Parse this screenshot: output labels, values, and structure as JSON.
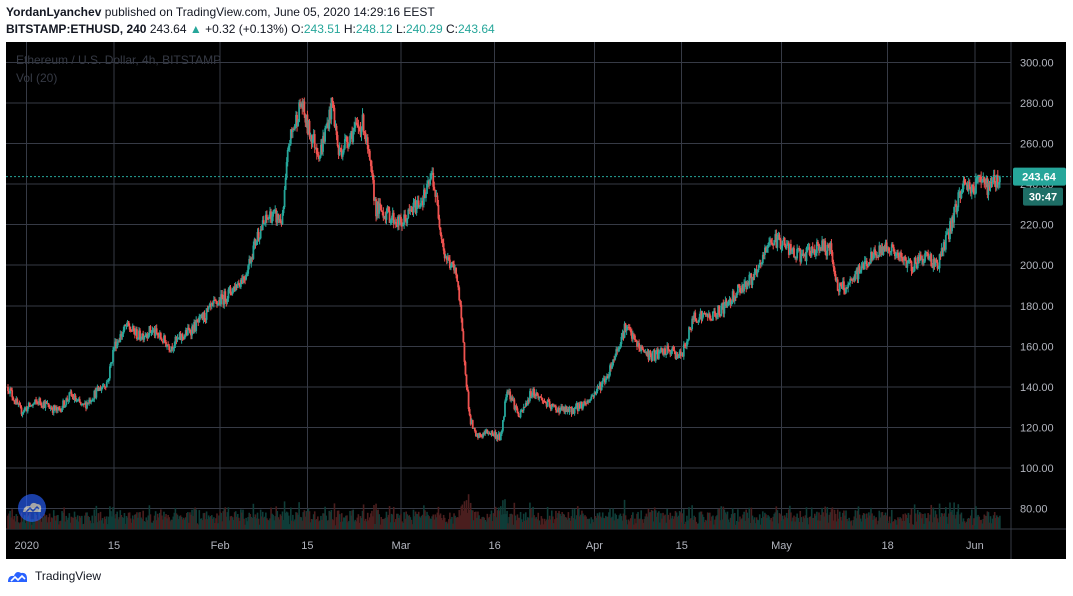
{
  "header": {
    "author": "YordanLyanchev",
    "published_text": "published on TradingView.com, June 05, 2020 14:29:16 EEST"
  },
  "symbol_line": {
    "symbol": "BITSTAMP:ETHUSD, 240",
    "last": "243.64",
    "arrow": "▲",
    "change": "+0.32 (+0.13%)",
    "o_label": "O:",
    "o_val": "243.51",
    "h_label": "H:",
    "h_val": "248.12",
    "l_label": "L:",
    "l_val": "240.29",
    "c_label": "C:",
    "c_val": "243.64"
  },
  "chart_title": "Ethereum / U.S. Dollar, 4h, BITSTAMP",
  "volume_label": "Vol (20)",
  "price_tag": "243.64",
  "countdown": "30:47",
  "footer": {
    "brand": "TradingView"
  },
  "colors": {
    "up": "#26a69a",
    "down": "#ef5350",
    "background": "#000000",
    "grid": "#363a45"
  },
  "icons": [
    "tradingview-logo-icon",
    "tradingview-watermark-icon"
  ],
  "chart_data": {
    "type": "candlestick",
    "y_ticks": [
      "300.00",
      "280.00",
      "260.00",
      "240.00",
      "220.00",
      "200.00",
      "180.00",
      "160.00",
      "140.00",
      "120.00",
      "100.00",
      "80.00"
    ],
    "ylim": [
      70,
      310
    ],
    "x_ticks": [
      "2020",
      "15",
      "Feb",
      "15",
      "Mar",
      "16",
      "Apr",
      "15",
      "May",
      "18",
      "Jun"
    ],
    "last_price": 243.64,
    "series": [
      {
        "name": "ETHUSD",
        "anchors": [
          [
            "2019-12-29",
            140
          ],
          [
            "2019-12-31",
            128
          ],
          [
            "2020-01-03",
            133
          ],
          [
            "2020-01-06",
            128
          ],
          [
            "2020-01-08",
            136
          ],
          [
            "2020-01-10",
            130
          ],
          [
            "2020-01-12",
            137
          ],
          [
            "2020-01-14",
            143
          ],
          [
            "2020-01-15",
            160
          ],
          [
            "2020-01-17",
            170
          ],
          [
            "2020-01-19",
            165
          ],
          [
            "2020-01-21",
            168
          ],
          [
            "2020-01-24",
            160
          ],
          [
            "2020-01-26",
            165
          ],
          [
            "2020-01-28",
            170
          ],
          [
            "2020-01-31",
            180
          ],
          [
            "2020-02-02",
            185
          ],
          [
            "2020-02-05",
            195
          ],
          [
            "2020-02-07",
            215
          ],
          [
            "2020-02-09",
            225
          ],
          [
            "2020-02-11",
            222
          ],
          [
            "2020-02-12",
            260
          ],
          [
            "2020-02-14",
            280
          ],
          [
            "2020-02-15",
            268
          ],
          [
            "2020-02-17",
            255
          ],
          [
            "2020-02-19",
            280
          ],
          [
            "2020-02-20",
            255
          ],
          [
            "2020-02-22",
            265
          ],
          [
            "2020-02-24",
            270
          ],
          [
            "2020-02-26",
            228
          ],
          [
            "2020-02-28",
            225
          ],
          [
            "2020-03-01",
            220
          ],
          [
            "2020-03-03",
            228
          ],
          [
            "2020-03-05",
            235
          ],
          [
            "2020-03-06",
            245
          ],
          [
            "2020-03-08",
            205
          ],
          [
            "2020-03-10",
            195
          ],
          [
            "2020-03-12",
            125
          ],
          [
            "2020-03-13",
            115
          ],
          [
            "2020-03-15",
            118
          ],
          [
            "2020-03-17",
            115
          ],
          [
            "2020-03-18",
            140
          ],
          [
            "2020-03-20",
            125
          ],
          [
            "2020-03-22",
            138
          ],
          [
            "2020-03-25",
            130
          ],
          [
            "2020-03-28",
            128
          ],
          [
            "2020-03-31",
            133
          ],
          [
            "2020-04-03",
            145
          ],
          [
            "2020-04-06",
            170
          ],
          [
            "2020-04-08",
            160
          ],
          [
            "2020-04-10",
            155
          ],
          [
            "2020-04-13",
            158
          ],
          [
            "2020-04-15",
            155
          ],
          [
            "2020-04-17",
            175
          ],
          [
            "2020-04-20",
            175
          ],
          [
            "2020-04-22",
            180
          ],
          [
            "2020-04-24",
            188
          ],
          [
            "2020-04-27",
            195
          ],
          [
            "2020-04-29",
            212
          ],
          [
            "2020-05-01",
            212
          ],
          [
            "2020-05-03",
            205
          ],
          [
            "2020-05-05",
            205
          ],
          [
            "2020-05-07",
            210
          ],
          [
            "2020-05-09",
            207
          ],
          [
            "2020-05-10",
            188
          ],
          [
            "2020-05-12",
            190
          ],
          [
            "2020-05-14",
            200
          ],
          [
            "2020-05-16",
            205
          ],
          [
            "2020-05-18",
            210
          ],
          [
            "2020-05-20",
            203
          ],
          [
            "2020-05-22",
            200
          ],
          [
            "2020-05-24",
            205
          ],
          [
            "2020-05-26",
            200
          ],
          [
            "2020-05-28",
            218
          ],
          [
            "2020-05-30",
            240
          ],
          [
            "2020-06-01",
            238
          ],
          [
            "2020-06-02",
            245
          ],
          [
            "2020-06-03",
            238
          ],
          [
            "2020-06-05",
            243.64
          ]
        ]
      }
    ]
  }
}
